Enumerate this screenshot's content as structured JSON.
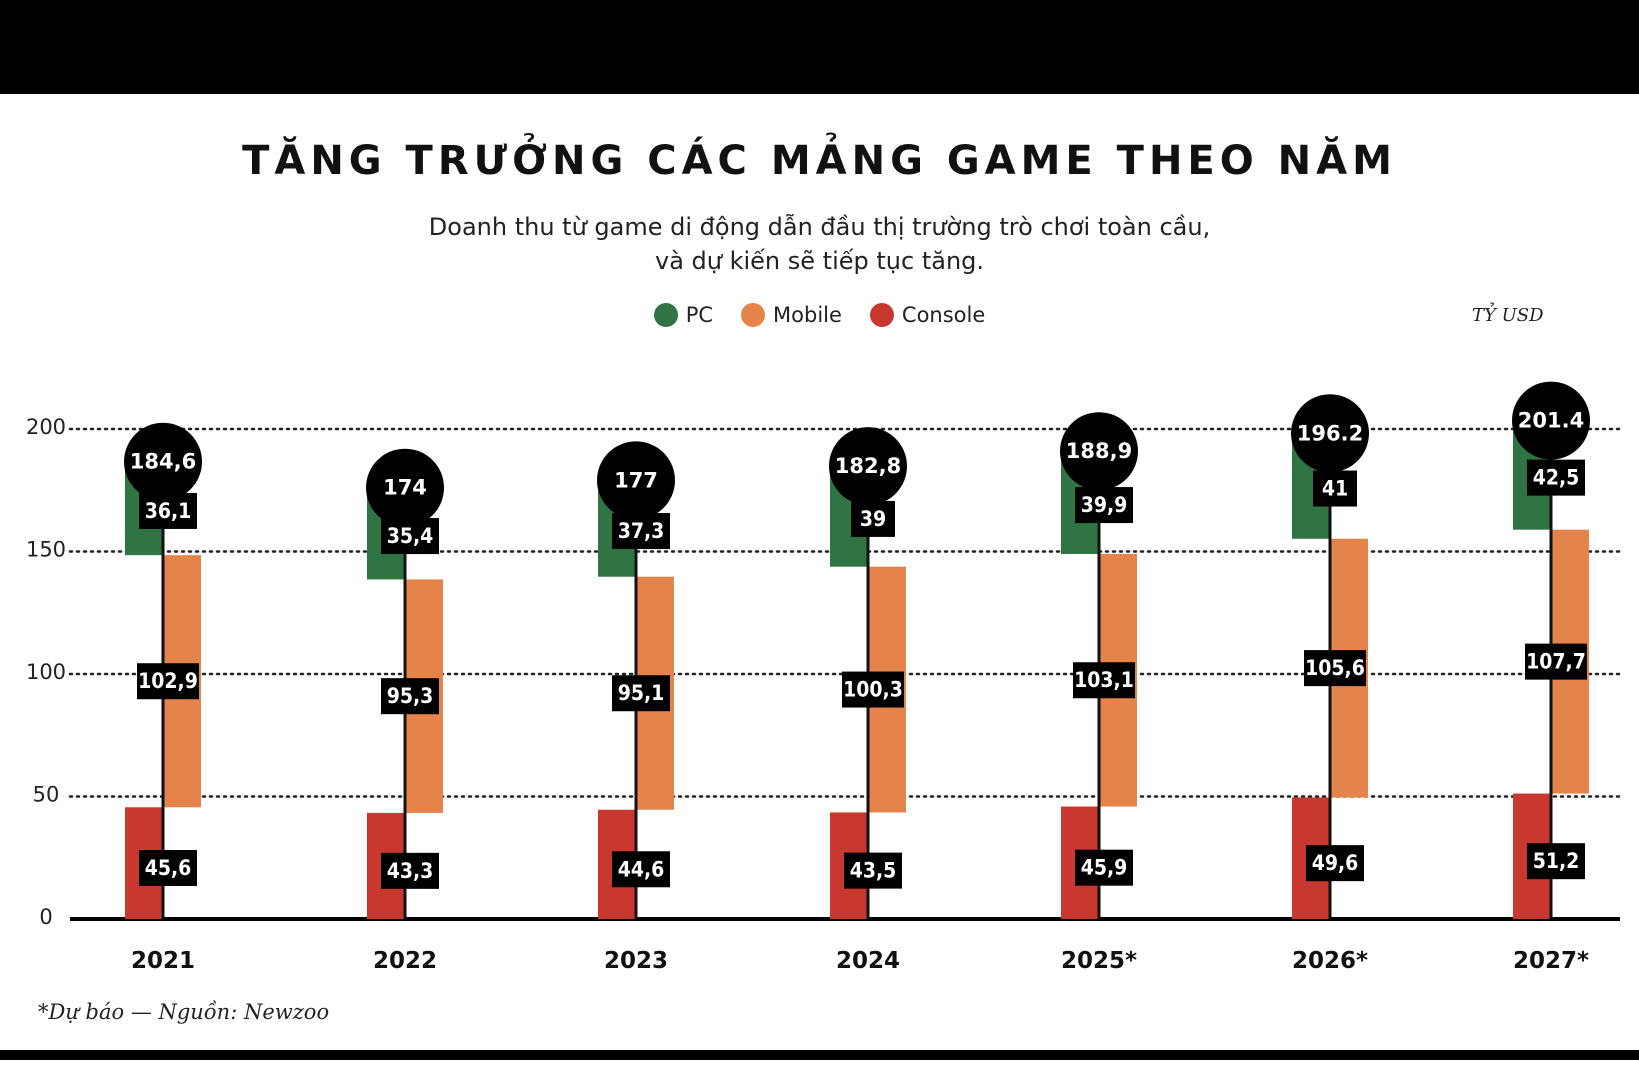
{
  "header": {
    "title": "TĂNG TRƯỞNG CÁC MẢNG GAME THEO NĂM",
    "subtitle_line1": "Doanh thu từ game di động dẫn đầu thị trường trò chơi toàn cầu,",
    "subtitle_line2": "và dự kiến sẽ tiếp tục tăng.",
    "unit": "TỶ USD"
  },
  "legend": [
    {
      "name": "PC",
      "color": "#2f7442"
    },
    {
      "name": "Mobile",
      "color": "#e4844b"
    },
    {
      "name": "Console",
      "color": "#c8382f"
    }
  ],
  "footnote": "*Dự báo — Nguồn: Newzoo",
  "colors": {
    "pc": "#2f7442",
    "mobile": "#e4844b",
    "console": "#c8382f",
    "label_bg": "#000000",
    "label_text": "#ffffff"
  },
  "chart_data": {
    "type": "bar",
    "stacked": true,
    "title": "TĂNG TRƯỞNG CÁC MẢNG GAME THEO NĂM",
    "ylabel": "TỶ USD",
    "ylim": [
      0,
      200
    ],
    "yticks": [
      0,
      50,
      100,
      150,
      200
    ],
    "ytick_labels": [
      "0",
      "50",
      "100",
      "150",
      "200"
    ],
    "grid": "horizontal-dotted",
    "legend_position": "top-center",
    "categories": [
      "2021",
      "2022",
      "2023",
      "2024",
      "2025*",
      "2026*",
      "2027*"
    ],
    "series": [
      {
        "name": "Console",
        "values": [
          45.6,
          43.3,
          44.6,
          43.5,
          45.9,
          49.6,
          51.2
        ],
        "labels": [
          "45,6",
          "43,3",
          "44,6",
          "43,5",
          "45,9",
          "49,6",
          "51,2"
        ]
      },
      {
        "name": "Mobile",
        "values": [
          102.9,
          95.3,
          95.1,
          100.3,
          103.1,
          105.6,
          107.7
        ],
        "labels": [
          "102,9",
          "95,3",
          "95,1",
          "100,3",
          "103,1",
          "105,6",
          "107,7"
        ]
      },
      {
        "name": "PC",
        "values": [
          36.1,
          35.4,
          37.3,
          39,
          39.9,
          41,
          42.5
        ],
        "labels": [
          "36,1",
          "35,4",
          "37,3",
          "39",
          "39,9",
          "41",
          "42,5"
        ]
      }
    ],
    "totals": [
      184.6,
      174,
      177,
      182.8,
      188.9,
      196.2,
      201.4
    ],
    "total_labels": [
      "184,6",
      "174",
      "177",
      "182,8",
      "188,9",
      "196.2",
      "201.4"
    ]
  }
}
